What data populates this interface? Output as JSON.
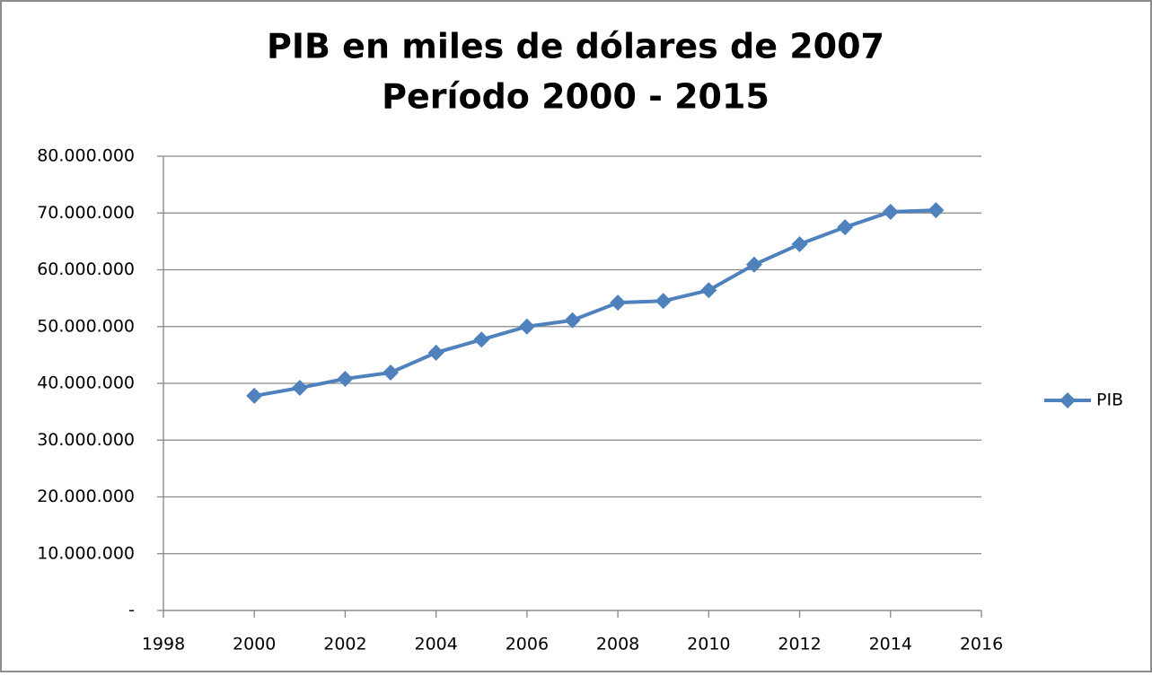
{
  "chart_data": {
    "type": "line",
    "title": [
      "PIB en miles de dólares de 2007",
      "Período 2000 - 2015"
    ],
    "x": [
      2000,
      2001,
      2002,
      2003,
      2004,
      2005,
      2006,
      2007,
      2008,
      2009,
      2010,
      2011,
      2012,
      2013,
      2014,
      2015
    ],
    "series": [
      {
        "name": "PIB",
        "color": "#4f81bd",
        "values": [
          37800000,
          39200000,
          40800000,
          41900000,
          45400000,
          47700000,
          50000000,
          51100000,
          54200000,
          54500000,
          56400000,
          60900000,
          64500000,
          67500000,
          70200000,
          70500000
        ]
      }
    ],
    "xlim": [
      1998,
      2016
    ],
    "xticks": [
      1998,
      2000,
      2002,
      2004,
      2006,
      2008,
      2010,
      2012,
      2014,
      2016
    ],
    "ylim": [
      0,
      80000000
    ],
    "yticks": [
      {
        "value": 0,
        "label": "-"
      },
      {
        "value": 10000000,
        "label": "10.000.000"
      },
      {
        "value": 20000000,
        "label": "20.000.000"
      },
      {
        "value": 30000000,
        "label": "30.000.000"
      },
      {
        "value": 40000000,
        "label": "40.000.000"
      },
      {
        "value": 50000000,
        "label": "50.000.000"
      },
      {
        "value": 60000000,
        "label": "60.000.000"
      },
      {
        "value": 70000000,
        "label": "70.000.000"
      },
      {
        "value": 80000000,
        "label": "80.000.000"
      }
    ],
    "grid": true,
    "legend": "right"
  }
}
